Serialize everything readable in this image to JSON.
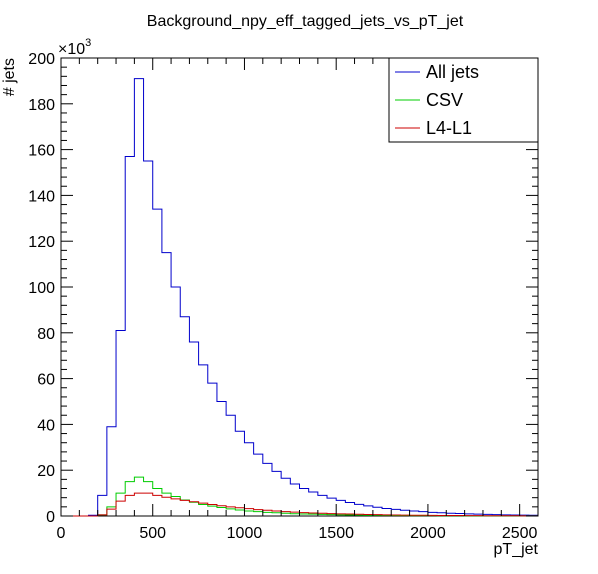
{
  "chart_data": {
    "type": "line",
    "title": "Background_npy_eff_tagged_jets_vs_pT_jet",
    "xlabel": "pT_jet",
    "ylabel": "# jets",
    "y_multiplier_label": "×10",
    "y_multiplier_exp": "3",
    "xlim": [
      0,
      2600
    ],
    "ylim": [
      0,
      200
    ],
    "bin_width": 50,
    "x_ticks": [
      0,
      500,
      1000,
      1500,
      2000,
      2500
    ],
    "x_tick_labels": [
      "0",
      "500",
      "1000",
      "1500",
      "2000",
      "2500"
    ],
    "y_ticks": [
      0,
      20,
      40,
      60,
      80,
      100,
      120,
      140,
      160,
      180,
      200
    ],
    "y_tick_labels": [
      "0",
      "20",
      "40",
      "60",
      "80",
      "100",
      "120",
      "140",
      "160",
      "180",
      "200"
    ],
    "legend_position": "top-right",
    "grid": false,
    "series": [
      {
        "name": "All jets",
        "color": "#0000cc",
        "values": [
          0,
          0,
          0,
          0.3,
          9,
          39,
          81,
          157,
          191,
          155,
          134,
          115,
          100,
          87,
          76,
          66,
          58,
          50,
          44,
          37,
          32,
          27,
          23,
          19.5,
          16.5,
          14,
          12,
          10.5,
          9,
          7.8,
          6.8,
          5.9,
          5.1,
          4.4,
          3.8,
          3.3,
          2.9,
          2.5,
          2.2,
          1.9,
          1.6,
          1.4,
          1.2,
          1.1,
          0.95,
          0.8,
          0.7,
          0.6,
          0.5,
          0.45,
          0.4,
          0.35
        ]
      },
      {
        "name": "CSV",
        "color": "#00cc00",
        "values": [
          0,
          0,
          0,
          0,
          0.5,
          4,
          10,
          15,
          17,
          15,
          12,
          10,
          8.5,
          7,
          6,
          5,
          4.3,
          3.7,
          3.1,
          2.6,
          2.2,
          1.9,
          1.6,
          1.4,
          1.2,
          1.0,
          0.9,
          0.8,
          0.7,
          0.6,
          0.5,
          0.45,
          0.4,
          0.35,
          0.3,
          0.25,
          0.22,
          0.2,
          0.18,
          0.16,
          0.14,
          0.12,
          0.1,
          0.09,
          0.08,
          0.07,
          0.06,
          0.05,
          0.05,
          0.04,
          0.04,
          0.03
        ]
      },
      {
        "name": "L4-L1",
        "color": "#cc0000",
        "values": [
          0,
          0,
          0,
          0,
          0.5,
          3,
          6.5,
          9,
          10,
          10,
          9,
          8.2,
          7.5,
          6.8,
          6.2,
          5.6,
          5,
          4.5,
          4,
          3.6,
          3.2,
          2.8,
          2.5,
          2.2,
          1.9,
          1.7,
          1.5,
          1.3,
          1.2,
          1.05,
          0.95,
          0.85,
          0.75,
          0.65,
          0.58,
          0.5,
          0.45,
          0.4,
          0.35,
          0.3,
          0.27,
          0.24,
          0.21,
          0.19,
          0.17,
          0.15,
          0.13,
          0.11,
          0.1,
          0.09,
          0.08,
          0.07
        ]
      }
    ]
  }
}
